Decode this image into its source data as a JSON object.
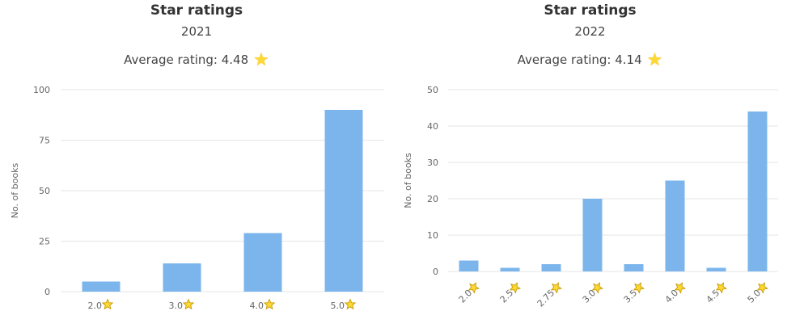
{
  "charts_text": [
    {
      "title": "Star ratings",
      "year": "2021",
      "average_label": "Average rating: 4.48"
    },
    {
      "title": "Star ratings",
      "year": "2022",
      "average_label": "Average rating: 4.14"
    }
  ],
  "colors": {
    "bar": "#7cb5ec",
    "grid": "#e6e6e6",
    "star": "#fdd835",
    "star_stroke": "#c79a00",
    "axis_text": "#666666"
  },
  "icons": {
    "average_star": "star-icon",
    "tick_star": "star-icon"
  },
  "chart_data": [
    {
      "type": "bar",
      "title": "Star ratings",
      "subtitle": "2021",
      "ylabel": "No. of books",
      "xlabel": "",
      "categories": [
        "2.0",
        "3.0",
        "4.0",
        "5.0"
      ],
      "values": [
        5,
        14,
        29,
        90
      ],
      "ylim": [
        0,
        100
      ],
      "yticks": [
        0,
        25,
        50,
        75,
        100
      ],
      "grid": true
    },
    {
      "type": "bar",
      "title": "Star ratings",
      "subtitle": "2022",
      "ylabel": "No. of books",
      "xlabel": "",
      "categories": [
        "2.0",
        "2.5",
        "2.75",
        "3.0",
        "3.5",
        "4.0",
        "4.5",
        "5.0"
      ],
      "values": [
        3,
        1,
        2,
        20,
        2,
        25,
        1,
        44
      ],
      "ylim": [
        0,
        50
      ],
      "yticks": [
        0,
        10,
        20,
        30,
        40,
        50
      ],
      "grid": true
    }
  ]
}
